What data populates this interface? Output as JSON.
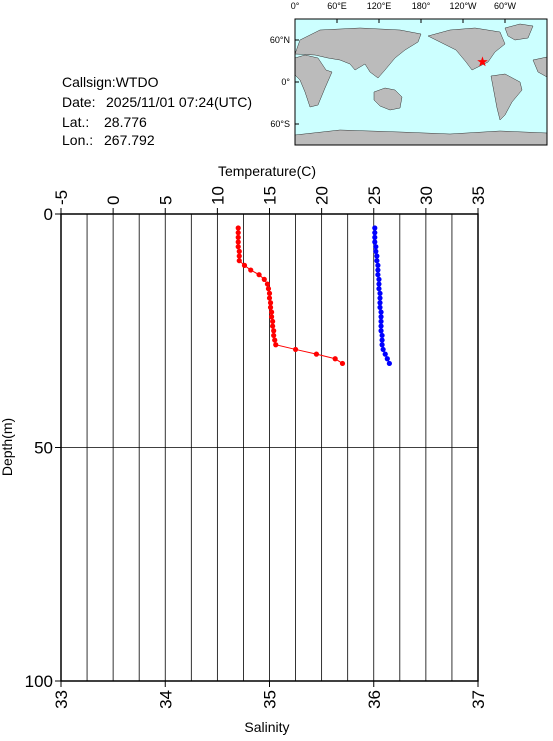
{
  "info": {
    "callsign": "Callsign:WTDO",
    "date_label": "Date:",
    "date": "2025/11/01 07:24(UTC)",
    "lat_label": "Lat.:",
    "lat": 28.776,
    "lon_label": "Lon.:",
    "lon": 267.792
  },
  "map": {
    "lon_labels": [
      "0°",
      "60°E",
      "120°E",
      "180°",
      "120°W",
      "60°W"
    ],
    "lat_labels": [
      "60°N",
      "0°",
      "60°S"
    ]
  },
  "chart_data": {
    "type": "line",
    "xlabel": "Temperature(C)",
    "x2label": "Salinity",
    "ylabel": "Depth(m)",
    "xlim": [
      -5,
      35
    ],
    "xticks": [
      -5,
      0,
      5,
      10,
      15,
      20,
      25,
      30,
      35
    ],
    "x2lim": [
      33,
      37
    ],
    "x2ticks": [
      33,
      34,
      35,
      36,
      37
    ],
    "ylim": [
      0,
      100
    ],
    "yticks": [
      0,
      50,
      100
    ],
    "y_inverted": true,
    "xgrid": [
      -2.5,
      0,
      2.5,
      5,
      7.5,
      10,
      12.5,
      15,
      17.5,
      20,
      22.5,
      25,
      27.5,
      30,
      32.5
    ],
    "ygrid": [
      50
    ],
    "depths": [
      3,
      4,
      5,
      6,
      7,
      8,
      9,
      10,
      11,
      12,
      13,
      14,
      15,
      16,
      17,
      18,
      19,
      20,
      21,
      22,
      23,
      24,
      25,
      26,
      27,
      28,
      29,
      30,
      31,
      32
    ],
    "series": [
      {
        "color": "#ff0000",
        "axis": "x",
        "values": [
          12.0,
          12.0,
          12.0,
          12.0,
          12.0,
          12.1,
          12.1,
          12.1,
          12.6,
          13.2,
          14.0,
          14.5,
          14.8,
          14.9,
          15.0,
          15.0,
          15.1,
          15.1,
          15.2,
          15.2,
          15.3,
          15.3,
          15.4,
          15.4,
          15.5,
          15.6,
          17.5,
          19.5,
          21.3,
          22.0
        ]
      },
      {
        "color": "#0000ff",
        "axis": "x2",
        "values": [
          36.01,
          36.01,
          36.01,
          36.01,
          36.02,
          36.02,
          36.03,
          36.03,
          36.04,
          36.04,
          36.04,
          36.05,
          36.05,
          36.05,
          36.06,
          36.06,
          36.06,
          36.06,
          36.07,
          36.07,
          36.07,
          36.07,
          36.07,
          36.08,
          36.08,
          36.08,
          36.09,
          36.11,
          36.13,
          36.15
        ]
      }
    ]
  }
}
